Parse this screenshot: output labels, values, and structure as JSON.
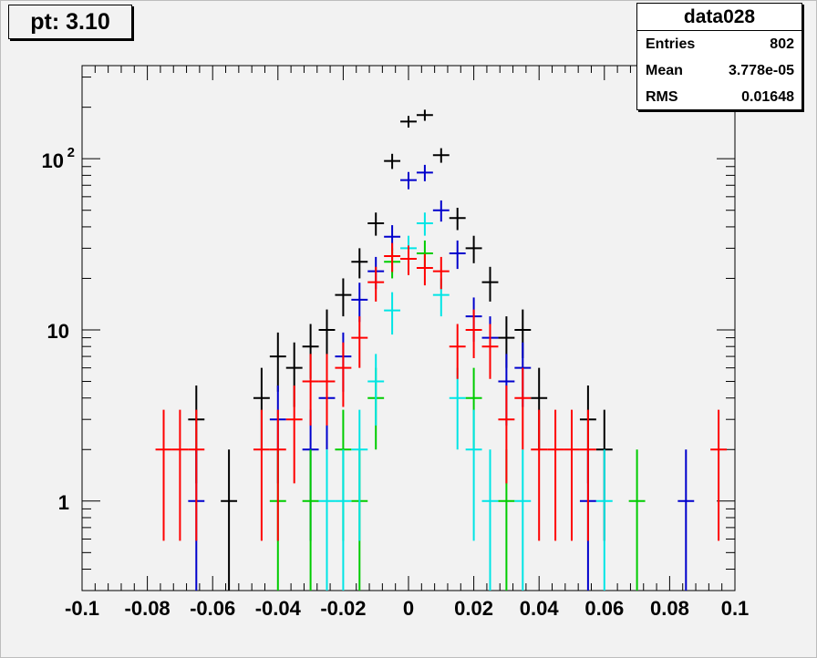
{
  "title": "pt: 3.10",
  "stats": {
    "name": "data028",
    "rows": [
      {
        "label": "Entries",
        "value": "802"
      },
      {
        "label": "Mean",
        "value": "3.778e-05"
      },
      {
        "label": "RMS",
        "value": "0.01648"
      }
    ]
  },
  "chart_data": {
    "type": "scatter",
    "title": "pt: 3.10",
    "xlabel": "",
    "ylabel": "",
    "xlim": [
      -0.1,
      0.1
    ],
    "ylim": [
      0.3,
      350
    ],
    "y_scale": "log",
    "grid": false,
    "x_ticks": [
      "-0.1",
      "-0.08",
      "-0.06",
      "-0.04",
      "-0.02",
      "0",
      "0.02",
      "0.04",
      "0.06",
      "0.08",
      "0.1"
    ],
    "y_ticks": [
      {
        "value": 1,
        "base": "1",
        "exp": ""
      },
      {
        "value": 10,
        "base": "10",
        "exp": ""
      },
      {
        "value": 100,
        "base": "10",
        "exp": "2"
      }
    ],
    "bin_half_width": 0.0025,
    "series": [
      {
        "color": "#000000",
        "points": [
          [
            -0.065,
            3
          ],
          [
            -0.055,
            1
          ],
          [
            -0.045,
            4
          ],
          [
            -0.04,
            7
          ],
          [
            -0.035,
            6
          ],
          [
            -0.03,
            8
          ],
          [
            -0.025,
            10
          ],
          [
            -0.02,
            16
          ],
          [
            -0.015,
            25
          ],
          [
            -0.01,
            42
          ],
          [
            -0.005,
            97
          ],
          [
            0.0,
            165
          ],
          [
            0.005,
            180
          ],
          [
            0.01,
            105
          ],
          [
            0.015,
            45
          ],
          [
            0.02,
            30
          ],
          [
            0.025,
            19
          ],
          [
            0.03,
            9
          ],
          [
            0.035,
            10
          ],
          [
            0.04,
            4
          ],
          [
            0.055,
            3
          ],
          [
            0.06,
            2
          ]
        ]
      },
      {
        "color": "#0000cc",
        "points": [
          [
            -0.065,
            1
          ],
          [
            -0.04,
            3
          ],
          [
            -0.03,
            2
          ],
          [
            -0.025,
            4
          ],
          [
            -0.02,
            7
          ],
          [
            -0.015,
            15
          ],
          [
            -0.01,
            22
          ],
          [
            -0.005,
            35
          ],
          [
            0.0,
            75
          ],
          [
            0.005,
            83
          ],
          [
            0.01,
            50
          ],
          [
            0.015,
            28
          ],
          [
            0.02,
            12
          ],
          [
            0.025,
            9
          ],
          [
            0.03,
            5
          ],
          [
            0.035,
            6
          ],
          [
            0.055,
            1
          ],
          [
            0.085,
            1
          ]
        ]
      },
      {
        "color": "#00cc00",
        "points": [
          [
            -0.04,
            1
          ],
          [
            -0.03,
            1
          ],
          [
            -0.02,
            2
          ],
          [
            -0.015,
            1
          ],
          [
            -0.01,
            4
          ],
          [
            -0.005,
            25
          ],
          [
            0.005,
            28
          ],
          [
            0.02,
            4
          ],
          [
            0.03,
            1
          ],
          [
            0.07,
            1
          ]
        ]
      },
      {
        "color": "#00e5e5",
        "points": [
          [
            -0.025,
            1
          ],
          [
            -0.02,
            1
          ],
          [
            -0.015,
            2
          ],
          [
            -0.01,
            5
          ],
          [
            -0.005,
            13
          ],
          [
            0.0,
            30
          ],
          [
            0.005,
            42
          ],
          [
            0.01,
            16
          ],
          [
            0.015,
            4
          ],
          [
            0.02,
            2
          ],
          [
            0.025,
            1
          ],
          [
            0.035,
            1
          ],
          [
            0.06,
            1
          ]
        ]
      },
      {
        "color": "#ff0000",
        "points": [
          [
            -0.075,
            2
          ],
          [
            -0.07,
            2
          ],
          [
            -0.065,
            2
          ],
          [
            -0.045,
            2
          ],
          [
            -0.04,
            2
          ],
          [
            -0.035,
            3
          ],
          [
            -0.03,
            5
          ],
          [
            -0.025,
            5
          ],
          [
            -0.02,
            6
          ],
          [
            -0.015,
            9
          ],
          [
            -0.01,
            19
          ],
          [
            -0.005,
            27
          ],
          [
            0.0,
            26
          ],
          [
            0.005,
            23
          ],
          [
            0.01,
            22
          ],
          [
            0.015,
            8
          ],
          [
            0.02,
            10
          ],
          [
            0.025,
            8
          ],
          [
            0.03,
            3
          ],
          [
            0.035,
            4
          ],
          [
            0.04,
            2
          ],
          [
            0.045,
            2
          ],
          [
            0.05,
            2
          ],
          [
            0.055,
            2
          ],
          [
            0.095,
            2
          ]
        ]
      }
    ]
  }
}
